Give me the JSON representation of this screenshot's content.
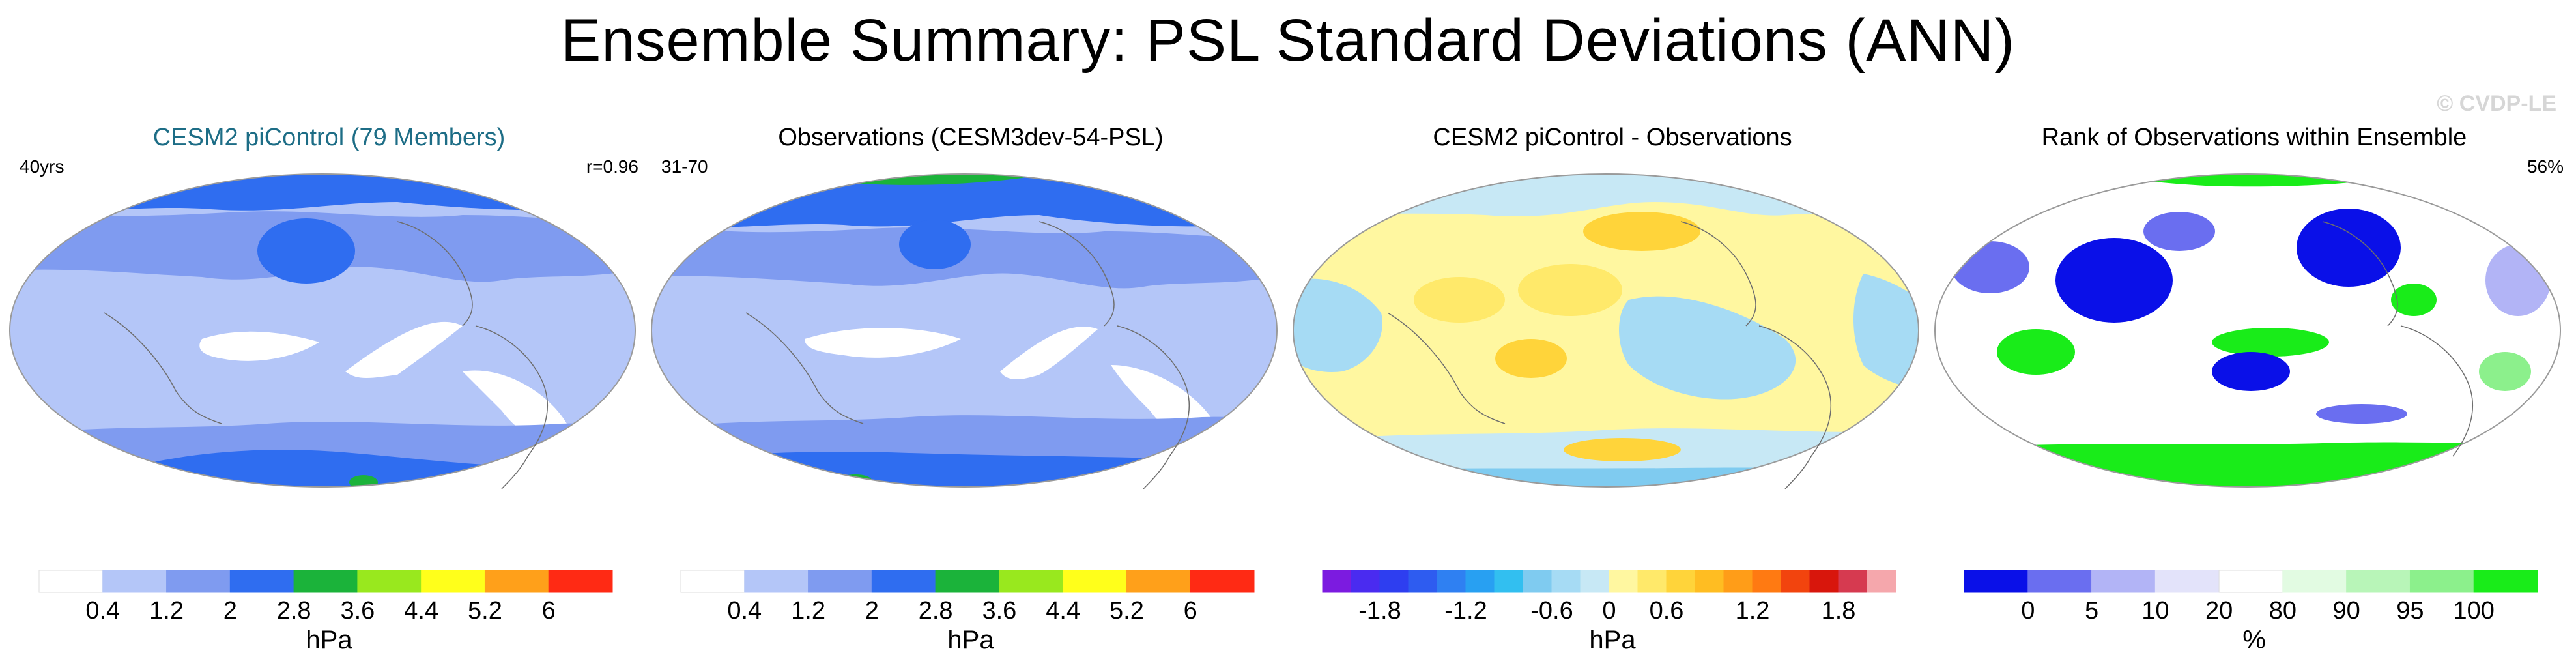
{
  "title": "Ensemble Summary: PSL Standard Deviations (ANN)",
  "watermark": "© CVDP-LE",
  "panels": [
    {
      "title": "CESM2 piControl (79 Members)",
      "left_text": "40yrs",
      "right_text": "r=0.96",
      "units": "hPa",
      "colorbar": {
        "colors": [
          "#ffffff",
          "#b4c6f8",
          "#7f9bf0",
          "#2f6df0",
          "#1bb33a",
          "#99e81e",
          "#ffff1b",
          "#ffa01a",
          "#ff2a14"
        ],
        "labels": [
          "0.4",
          "1.2",
          "2",
          "2.8",
          "3.6",
          "4.4",
          "5.2",
          "6"
        ]
      }
    },
    {
      "title": "Observations (CESM3dev-54-PSL)",
      "left_text": "31-70",
      "right_text": "",
      "units": "hPa",
      "colorbar": {
        "colors": [
          "#ffffff",
          "#b4c6f8",
          "#7f9bf0",
          "#2f6df0",
          "#1bb33a",
          "#99e81e",
          "#ffff1b",
          "#ffa01a",
          "#ff2a14"
        ],
        "labels": [
          "0.4",
          "1.2",
          "2",
          "2.8",
          "3.6",
          "4.4",
          "5.2",
          "6"
        ]
      }
    },
    {
      "title": "CESM2 piControl - Observations",
      "left_text": "",
      "right_text": "",
      "units": "hPa",
      "colorbar": {
        "colors": [
          "#7c1be0",
          "#4a2bf0",
          "#2e3ef0",
          "#2e5cf0",
          "#2f80f2",
          "#28a0f2",
          "#32bff0",
          "#7fcbf0",
          "#a6dbf4",
          "#c7e8f5",
          "#fff7a0",
          "#ffe96a",
          "#ffd43a",
          "#ffbd22",
          "#ff9d18",
          "#ff7a12",
          "#f2440e",
          "#d8160c",
          "#d63a50",
          "#f5a7ac"
        ],
        "labels": [
          "-1.8",
          "-1.2",
          "-0.6",
          "0",
          "0.6",
          "1.2",
          "1.8"
        ],
        "label_slots": [
          2,
          5,
          8,
          10,
          12,
          15,
          18
        ]
      }
    },
    {
      "title": "Rank of Observations within Ensemble",
      "left_text": "",
      "right_text": "56%",
      "units": "%",
      "colorbar": {
        "colors": [
          "#0a10e8",
          "#6a6ef0",
          "#b2b4f6",
          "#e3e3fa",
          "#ffffff",
          "#e2fbe2",
          "#b8f5b8",
          "#8cf08c",
          "#19ec19"
        ],
        "labels": [
          "0",
          "5",
          "10",
          "20",
          "80",
          "90",
          "95",
          "100"
        ]
      }
    }
  ]
}
